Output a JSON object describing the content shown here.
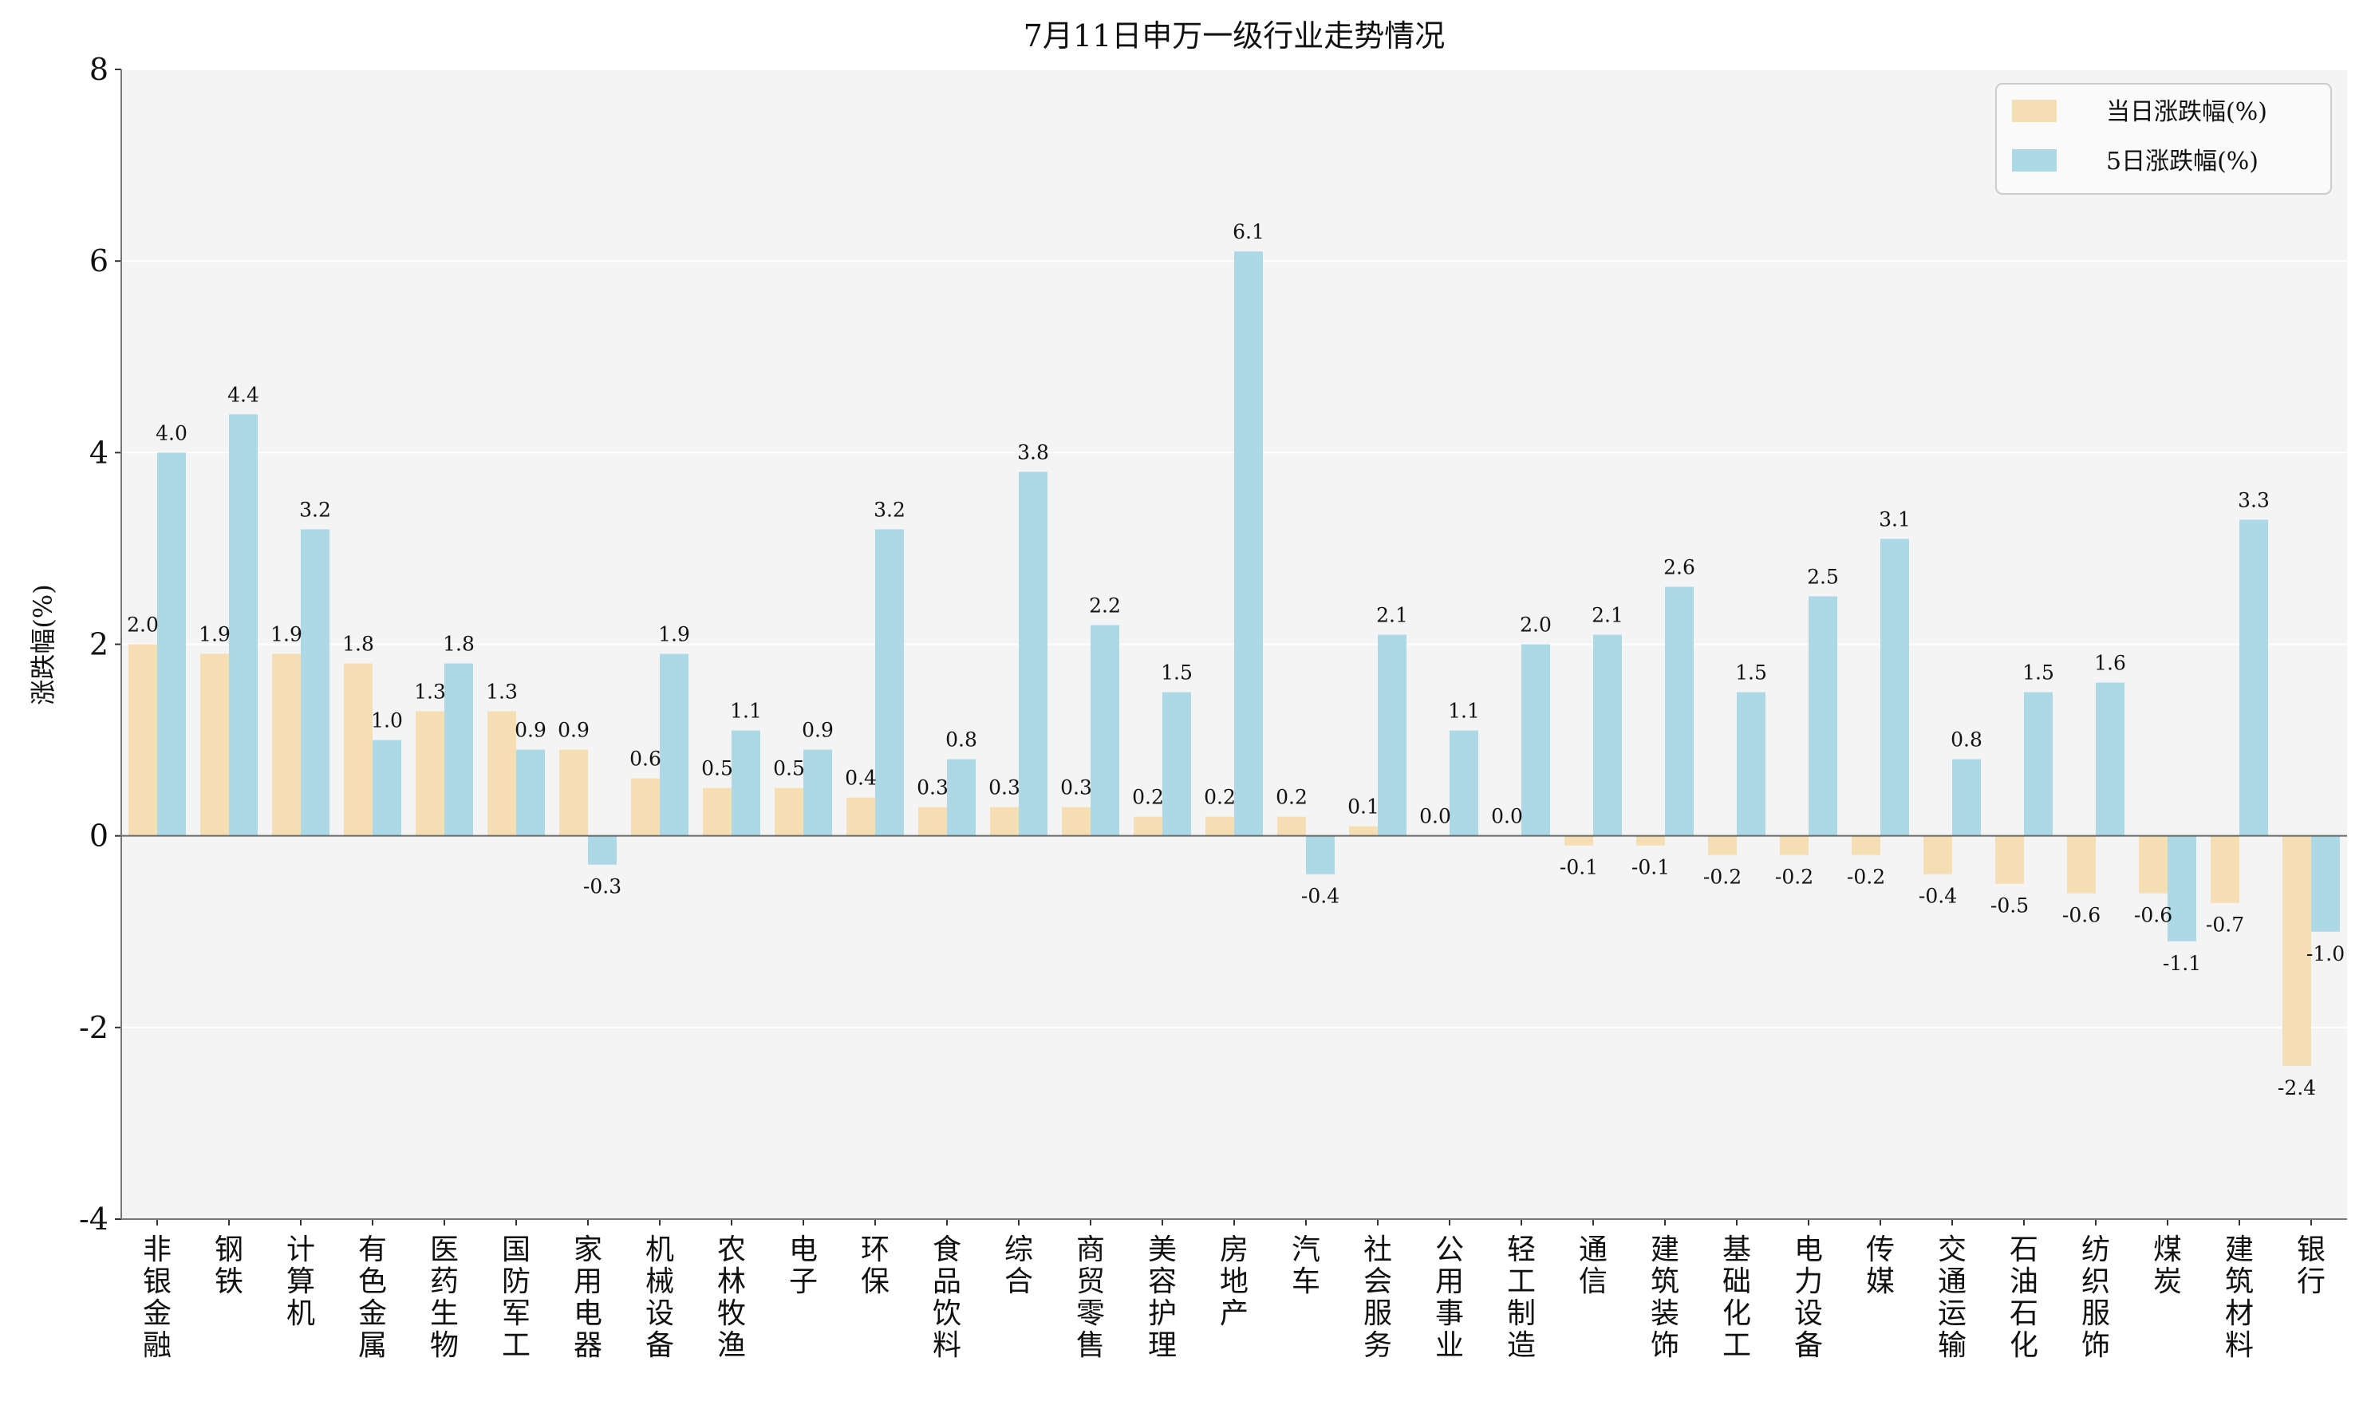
{
  "chart_data": {
    "type": "bar",
    "title": "7月11日申万一级行业走势情况",
    "xlabel": "",
    "ylabel": "涨跌幅(%)",
    "ylim": [
      -4,
      8
    ],
    "yticks": [
      -4,
      -2,
      0,
      2,
      4,
      6,
      8
    ],
    "grid": true,
    "legend_position": "top-right",
    "categories": [
      "非银金融",
      "钢铁",
      "计算机",
      "有色金属",
      "医药生物",
      "国防军工",
      "家用电器",
      "机械设备",
      "农林牧渔",
      "电子",
      "环保",
      "食品饮料",
      "综合",
      "商贸零售",
      "美容护理",
      "房地产",
      "汽车",
      "社会服务",
      "公用事业",
      "轻工制造",
      "通信",
      "建筑装饰",
      "基础化工",
      "电力设备",
      "传媒",
      "交通运输",
      "石油石化",
      "纺织服饰",
      "煤炭",
      "建筑材料",
      "银行"
    ],
    "series": [
      {
        "name": "当日涨跌幅(%)",
        "color": "#f5deb3",
        "values": [
          2.0,
          1.9,
          1.9,
          1.8,
          1.3,
          1.3,
          0.9,
          0.6,
          0.5,
          0.5,
          0.4,
          0.3,
          0.3,
          0.3,
          0.2,
          0.2,
          0.2,
          0.1,
          0.0,
          0.0,
          -0.1,
          -0.1,
          -0.2,
          -0.2,
          -0.2,
          -0.4,
          -0.5,
          -0.6,
          -0.6,
          -0.7,
          -2.4
        ]
      },
      {
        "name": "5日涨跌幅(%)",
        "color": "#add8e6",
        "values": [
          4.0,
          4.4,
          3.2,
          1.0,
          1.8,
          0.9,
          -0.3,
          1.9,
          1.1,
          0.9,
          3.2,
          0.8,
          3.8,
          2.2,
          1.5,
          6.1,
          -0.4,
          2.1,
          1.1,
          2.0,
          2.1,
          2.6,
          1.5,
          2.5,
          3.1,
          0.8,
          1.5,
          1.6,
          -1.1,
          3.3,
          -1.0
        ]
      }
    ]
  }
}
